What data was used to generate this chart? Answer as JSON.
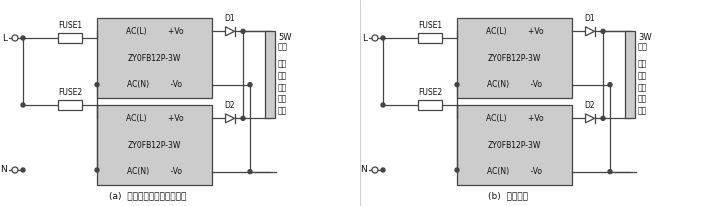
{
  "bg_color": "#ffffff",
  "line_color": "#444444",
  "box_fill": "#cccccc",
  "box_edge": "#444444",
  "text_color": "#111111",
  "figsize": [
    7.18,
    2.06
  ],
  "dpi": 100,
  "left": {
    "caption": "(a)  并联应用（不恰当应用）",
    "L_label": "L",
    "N_label": "N",
    "fuse1_label": "FUSE1",
    "fuse2_label": "FUSE2",
    "box_lines": [
      "AC(L)         +Vo",
      "ZY0FB12P-3W",
      "AC(N)         -Vo"
    ],
    "d1_label": "D1",
    "d2_label": "D2",
    "load_top": "5W",
    "load_bot": "负载",
    "note": "负载\n大于\n单个\n模块\n功率"
  },
  "right": {
    "caption": "(b)  冗余应用",
    "L_label": "L",
    "N_label": "N",
    "fuse1_label": "FUSE1",
    "fuse2_label": "FUSE2",
    "box_lines": [
      "AC(L)         +Vo",
      "ZY0FB12P-3W",
      "AC(N)         -Vo"
    ],
    "d1_label": "D1",
    "d2_label": "D2",
    "load_top": "3W",
    "load_bot": "负载",
    "note": "负载\n在单\n个模\n块功\n率内"
  }
}
